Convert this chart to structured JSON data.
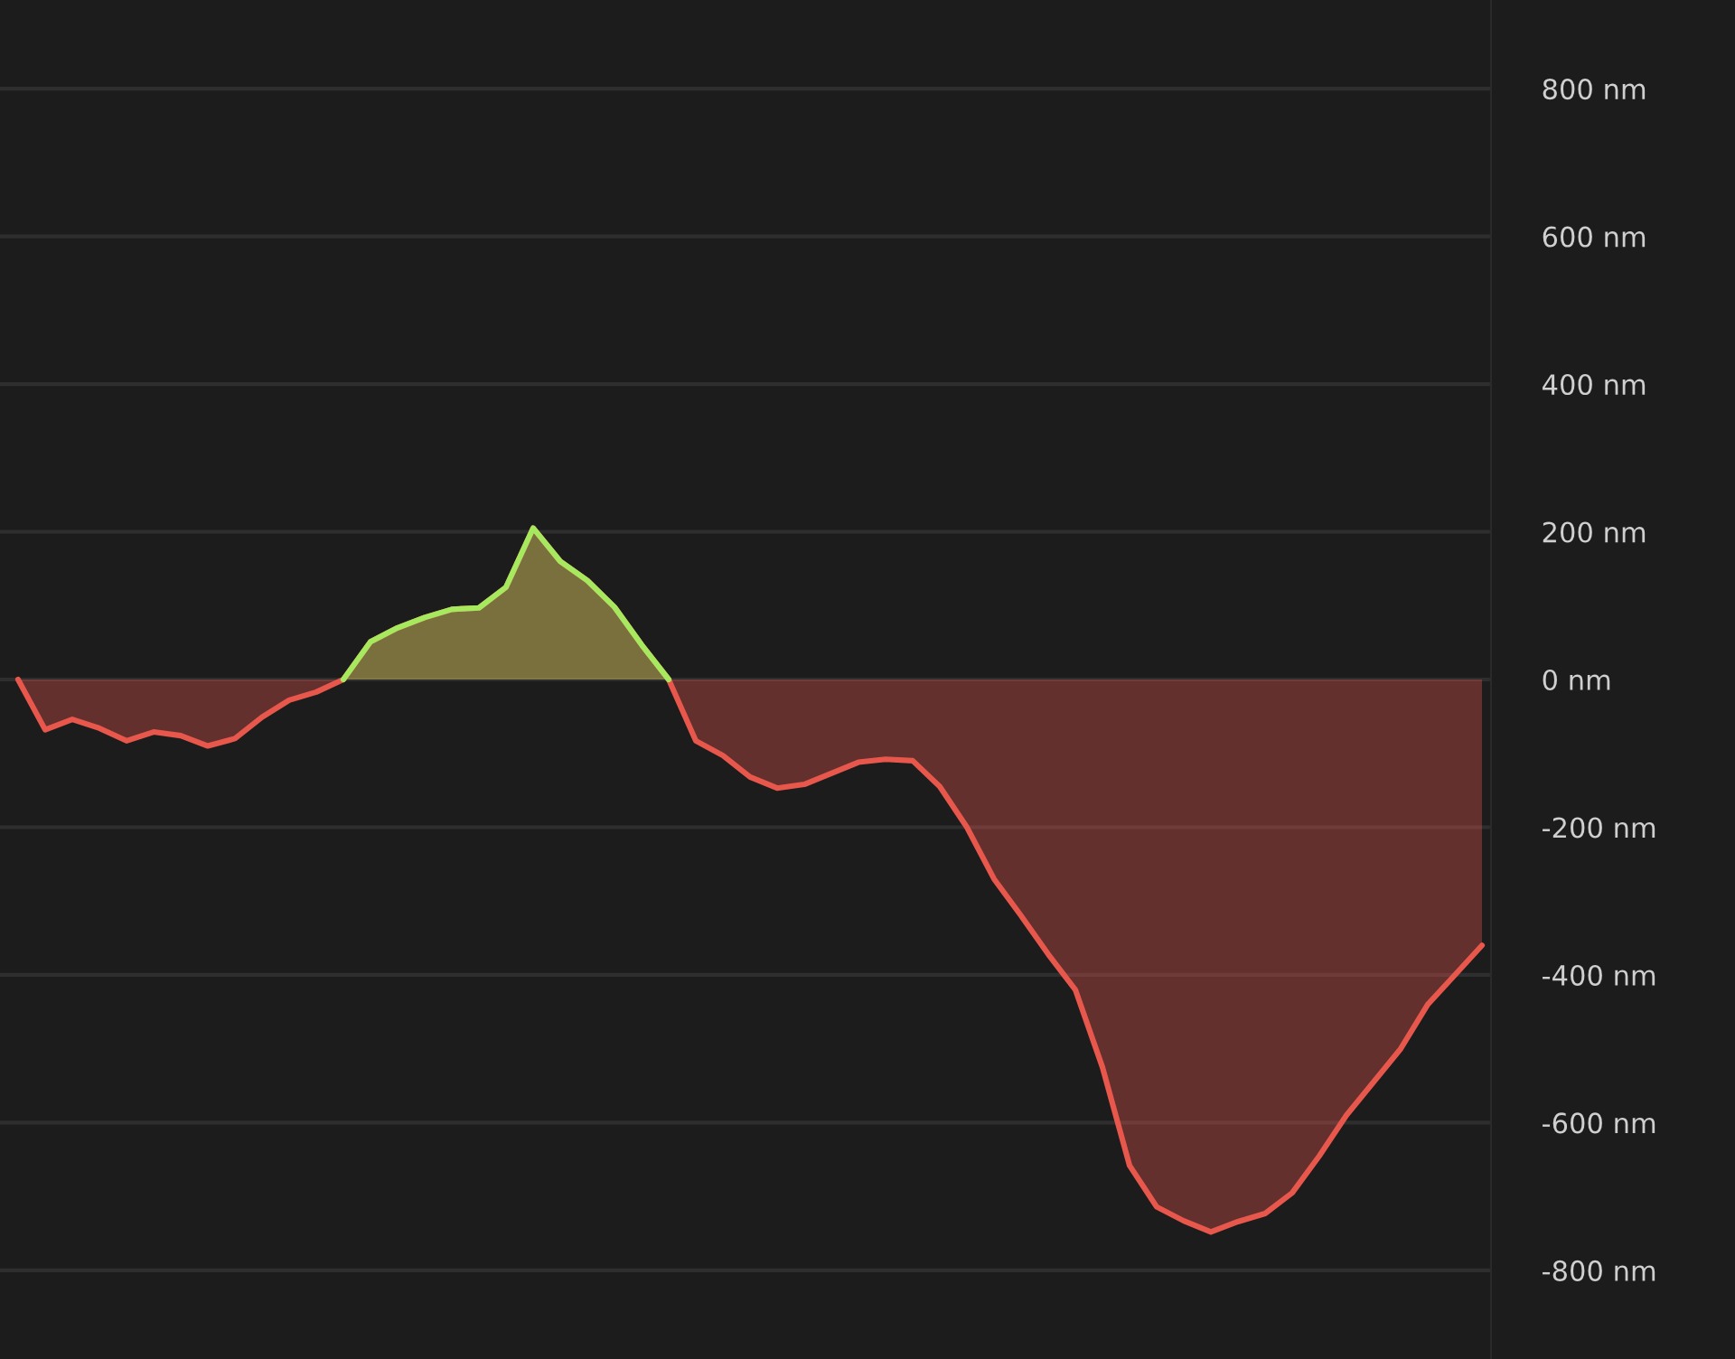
{
  "chart_data": {
    "type": "area",
    "categories": [
      null,
      null,
      null,
      null,
      null,
      null,
      null,
      null,
      null,
      null,
      null,
      null,
      null,
      null,
      null,
      null,
      null,
      null,
      null,
      null,
      null,
      null,
      null,
      null,
      null,
      null,
      null,
      null,
      null,
      null,
      null,
      null,
      null,
      null,
      null,
      null,
      null,
      null,
      null,
      null,
      null,
      null,
      null,
      null,
      null,
      null,
      null,
      null,
      null,
      null,
      null,
      null,
      null,
      null,
      null
    ],
    "series": [
      {
        "color": "#e8574c",
        "values": [
          0,
          -68,
          -54,
          -66,
          -83,
          -71,
          -76,
          -90,
          -80,
          -51,
          -28,
          -17,
          0,
          51,
          70,
          84,
          95,
          97,
          125,
          205,
          160,
          134,
          98,
          47,
          0,
          -83,
          -103,
          -132,
          -147,
          -142,
          -127,
          -112,
          -108,
          -110,
          -145,
          -200,
          -270,
          -320,
          -372,
          -420,
          -525,
          -658,
          -714,
          -733,
          -748,
          -734,
          -723,
          -695,
          -645,
          -590,
          -545,
          -500,
          -440,
          -400,
          -360
        ]
      },
      {
        "color": "#a6e85e",
        "values": [
          null,
          null,
          null,
          null,
          null,
          null,
          null,
          null,
          null,
          null,
          null,
          null,
          0,
          51,
          70,
          84,
          95,
          97,
          125,
          205,
          160,
          134,
          98,
          47,
          0,
          null,
          null,
          null,
          null,
          null,
          null,
          null,
          null,
          null,
          null,
          null,
          null,
          null,
          null,
          null,
          null,
          null,
          null,
          null,
          null,
          null,
          null,
          null,
          null,
          null,
          null,
          null,
          null,
          null,
          null
        ]
      }
    ],
    "ylim": [
      -920,
      920
    ],
    "yticks": [
      {
        "value": 800,
        "label": "800 nm"
      },
      {
        "value": 600,
        "label": "600 nm"
      },
      {
        "value": 400,
        "label": "400 nm"
      },
      {
        "value": 200,
        "label": "200 nm"
      },
      {
        "value": 0,
        "label": "0 nm"
      },
      {
        "value": -200,
        "label": "-200 nm"
      },
      {
        "value": -400,
        "label": "-400 nm"
      },
      {
        "value": -600,
        "label": "-600 nm"
      },
      {
        "value": -800,
        "label": "-800 nm"
      }
    ],
    "grid": "y",
    "tick_labels": "y"
  }
}
